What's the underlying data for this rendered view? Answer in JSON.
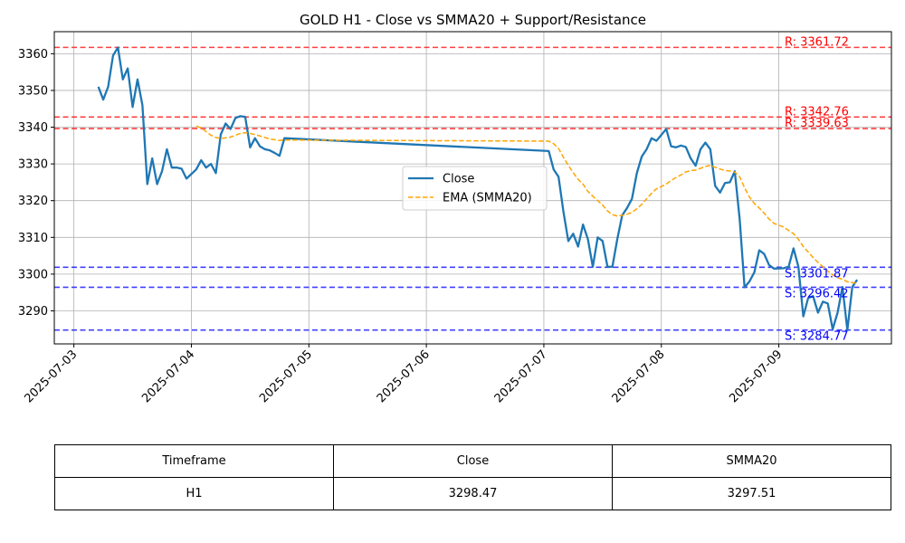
{
  "chart_data": {
    "type": "line",
    "title": "GOLD H1 - Close vs SMMA20 + Support/Resistance",
    "xlabel": "",
    "ylabel": "",
    "x_ticks": [
      "2025-07-03",
      "2025-07-04",
      "2025-07-05",
      "2025-07-06",
      "2025-07-07",
      "2025-07-08",
      "2025-07-09"
    ],
    "y_ticks": [
      3290,
      3300,
      3310,
      3320,
      3330,
      3340,
      3350,
      3360
    ],
    "xlim": [
      "2025-07-02 20:00",
      "2025-07-09 23:00"
    ],
    "ylim": [
      3281,
      3366
    ],
    "grid": true,
    "legend_position": "center-right",
    "series": [
      {
        "name": "Close",
        "color": "#1f77b4",
        "style": "solid",
        "points": [
          [
            "2025-07-03 05:00",
            3351
          ],
          [
            "2025-07-03 06:00",
            3347.5
          ],
          [
            "2025-07-03 07:00",
            3351
          ],
          [
            "2025-07-03 08:00",
            3359.5
          ],
          [
            "2025-07-03 09:00",
            3361.7
          ],
          [
            "2025-07-03 10:00",
            3353
          ],
          [
            "2025-07-03 11:00",
            3356
          ],
          [
            "2025-07-03 12:00",
            3345.5
          ],
          [
            "2025-07-03 13:00",
            3353
          ],
          [
            "2025-07-03 14:00",
            3346
          ],
          [
            "2025-07-03 15:00",
            3324.5
          ],
          [
            "2025-07-03 16:00",
            3331.5
          ],
          [
            "2025-07-03 17:00",
            3324.5
          ],
          [
            "2025-07-03 18:00",
            3328
          ],
          [
            "2025-07-03 19:00",
            3334
          ],
          [
            "2025-07-03 20:00",
            3329
          ],
          [
            "2025-07-03 21:00",
            3329
          ],
          [
            "2025-07-03 22:00",
            3328.7
          ],
          [
            "2025-07-03 23:00",
            3326
          ],
          [
            "2025-07-04 01:00",
            3328.5
          ],
          [
            "2025-07-04 02:00",
            3331
          ],
          [
            "2025-07-04 03:00",
            3329
          ],
          [
            "2025-07-04 04:00",
            3330
          ],
          [
            "2025-07-04 05:00",
            3327.5
          ],
          [
            "2025-07-04 06:00",
            3338
          ],
          [
            "2025-07-04 07:00",
            3341
          ],
          [
            "2025-07-04 08:00",
            3339.5
          ],
          [
            "2025-07-04 09:00",
            3342.5
          ],
          [
            "2025-07-04 10:00",
            3343
          ],
          [
            "2025-07-04 11:00",
            3342.8
          ],
          [
            "2025-07-04 12:00",
            3334.5
          ],
          [
            "2025-07-04 13:00",
            3337
          ],
          [
            "2025-07-04 14:00",
            3334.8
          ],
          [
            "2025-07-04 15:00",
            3334
          ],
          [
            "2025-07-04 16:00",
            3333.7
          ],
          [
            "2025-07-04 17:00",
            3333
          ],
          [
            "2025-07-04 18:00",
            3332.2
          ],
          [
            "2025-07-04 19:00",
            3337
          ],
          [
            "2025-07-07 01:00",
            3333.5
          ],
          [
            "2025-07-07 02:00",
            3328.5
          ],
          [
            "2025-07-07 03:00",
            3326.5
          ],
          [
            "2025-07-07 04:00",
            3317
          ],
          [
            "2025-07-07 05:00",
            3309
          ],
          [
            "2025-07-07 06:00",
            3311
          ],
          [
            "2025-07-07 07:00",
            3307.5
          ],
          [
            "2025-07-07 08:00",
            3313.5
          ],
          [
            "2025-07-07 09:00",
            3309.5
          ],
          [
            "2025-07-07 10:00",
            3302
          ],
          [
            "2025-07-07 11:00",
            3310
          ],
          [
            "2025-07-07 12:00",
            3309
          ],
          [
            "2025-07-07 13:00",
            3302
          ],
          [
            "2025-07-07 14:00",
            3302
          ],
          [
            "2025-07-07 15:00",
            3309.5
          ],
          [
            "2025-07-07 16:00",
            3316
          ],
          [
            "2025-07-07 17:00",
            3318
          ],
          [
            "2025-07-07 18:00",
            3320.5
          ],
          [
            "2025-07-07 19:00",
            3327.5
          ],
          [
            "2025-07-07 20:00",
            3332
          ],
          [
            "2025-07-07 21:00",
            3334
          ],
          [
            "2025-07-07 22:00",
            3337
          ],
          [
            "2025-07-07 23:00",
            3336.3
          ],
          [
            "2025-07-08 01:00",
            3339.5
          ],
          [
            "2025-07-08 02:00",
            3334.8
          ],
          [
            "2025-07-08 03:00",
            3334.5
          ],
          [
            "2025-07-08 04:00",
            3335
          ],
          [
            "2025-07-08 05:00",
            3334.6
          ],
          [
            "2025-07-08 06:00",
            3331.5
          ],
          [
            "2025-07-08 07:00",
            3329.5
          ],
          [
            "2025-07-08 08:00",
            3334
          ],
          [
            "2025-07-08 09:00",
            3335.8
          ],
          [
            "2025-07-08 10:00",
            3334
          ],
          [
            "2025-07-08 11:00",
            3324
          ],
          [
            "2025-07-08 12:00",
            3322.2
          ],
          [
            "2025-07-08 13:00",
            3324.8
          ],
          [
            "2025-07-08 14:00",
            3325
          ],
          [
            "2025-07-08 15:00",
            3328
          ],
          [
            "2025-07-08 16:00",
            3315
          ],
          [
            "2025-07-08 17:00",
            3296.4
          ],
          [
            "2025-07-08 18:00",
            3298
          ],
          [
            "2025-07-08 19:00",
            3300.5
          ],
          [
            "2025-07-08 20:00",
            3306.5
          ],
          [
            "2025-07-08 21:00",
            3305.5
          ],
          [
            "2025-07-08 22:00",
            3302.5
          ],
          [
            "2025-07-08 23:00",
            3301.5
          ],
          [
            "2025-07-09 01:00",
            3301.6
          ],
          [
            "2025-07-09 02:00",
            3302
          ],
          [
            "2025-07-09 03:00",
            3307
          ],
          [
            "2025-07-09 04:00",
            3302
          ],
          [
            "2025-07-09 05:00",
            3288.5
          ],
          [
            "2025-07-09 06:00",
            3293.5
          ],
          [
            "2025-07-09 07:00",
            3294
          ],
          [
            "2025-07-09 08:00",
            3289.5
          ],
          [
            "2025-07-09 09:00",
            3292.5
          ],
          [
            "2025-07-09 10:00",
            3292
          ],
          [
            "2025-07-09 11:00",
            3285
          ],
          [
            "2025-07-09 12:00",
            3289.5
          ],
          [
            "2025-07-09 13:00",
            3296.5
          ],
          [
            "2025-07-09 14:00",
            3284.8
          ],
          [
            "2025-07-09 15:00",
            3296.5
          ],
          [
            "2025-07-09 16:00",
            3298.47
          ]
        ]
      },
      {
        "name": "EMA (SMMA20)",
        "color": "#ffa500",
        "style": "dashed",
        "points": [
          [
            "2025-07-04 01:00",
            3340.3
          ],
          [
            "2025-07-04 02:00",
            3339.8
          ],
          [
            "2025-07-04 03:00",
            3338.8
          ],
          [
            "2025-07-04 04:00",
            3337.8
          ],
          [
            "2025-07-04 05:00",
            3337.2
          ],
          [
            "2025-07-04 06:00",
            3336.9
          ],
          [
            "2025-07-04 07:00",
            3337.1
          ],
          [
            "2025-07-04 08:00",
            3337.3
          ],
          [
            "2025-07-04 09:00",
            3337.8
          ],
          [
            "2025-07-04 10:00",
            3338.3
          ],
          [
            "2025-07-04 11:00",
            3338.5
          ],
          [
            "2025-07-04 12:00",
            3338.3
          ],
          [
            "2025-07-04 13:00",
            3338
          ],
          [
            "2025-07-04 14:00",
            3337.6
          ],
          [
            "2025-07-04 15:00",
            3337.2
          ],
          [
            "2025-07-04 16:00",
            3336.8
          ],
          [
            "2025-07-04 17:00",
            3336.6
          ],
          [
            "2025-07-04 18:00",
            3336.4
          ],
          [
            "2025-07-04 19:00",
            3336.5
          ],
          [
            "2025-07-07 01:00",
            3336.2
          ],
          [
            "2025-07-07 02:00",
            3335.5
          ],
          [
            "2025-07-07 03:00",
            3334.2
          ],
          [
            "2025-07-07 04:00",
            3331.8
          ],
          [
            "2025-07-07 05:00",
            3329.6
          ],
          [
            "2025-07-07 06:00",
            3327.6
          ],
          [
            "2025-07-07 07:00",
            3325.8
          ],
          [
            "2025-07-07 08:00",
            3324.5
          ],
          [
            "2025-07-07 09:00",
            3322.5
          ],
          [
            "2025-07-07 10:00",
            3321.2
          ],
          [
            "2025-07-07 11:00",
            3320
          ],
          [
            "2025-07-07 12:00",
            3318.8
          ],
          [
            "2025-07-07 13:00",
            3317.2
          ],
          [
            "2025-07-07 14:00",
            3316.2
          ],
          [
            "2025-07-07 15:00",
            3315.8
          ],
          [
            "2025-07-07 16:00",
            3316
          ],
          [
            "2025-07-07 17:00",
            3316.3
          ],
          [
            "2025-07-07 18:00",
            3316.8
          ],
          [
            "2025-07-07 19:00",
            3317.8
          ],
          [
            "2025-07-07 20:00",
            3319
          ],
          [
            "2025-07-07 21:00",
            3320.5
          ],
          [
            "2025-07-07 22:00",
            3322
          ],
          [
            "2025-07-07 23:00",
            3323.2
          ],
          [
            "2025-07-08 01:00",
            3324.5
          ],
          [
            "2025-07-08 02:00",
            3325.5
          ],
          [
            "2025-07-08 03:00",
            3326.3
          ],
          [
            "2025-07-08 04:00",
            3327
          ],
          [
            "2025-07-08 05:00",
            3327.8
          ],
          [
            "2025-07-08 06:00",
            3328.2
          ],
          [
            "2025-07-08 07:00",
            3328.3
          ],
          [
            "2025-07-08 08:00",
            3328.8
          ],
          [
            "2025-07-08 09:00",
            3329.3
          ],
          [
            "2025-07-08 10:00",
            3329.6
          ],
          [
            "2025-07-08 11:00",
            3329.1
          ],
          [
            "2025-07-08 12:00",
            3328.6
          ],
          [
            "2025-07-08 13:00",
            3328.2
          ],
          [
            "2025-07-08 14:00",
            3328.1
          ],
          [
            "2025-07-08 15:00",
            3327.8
          ],
          [
            "2025-07-08 16:00",
            3326.5
          ],
          [
            "2025-07-08 17:00",
            3323.5
          ],
          [
            "2025-07-08 18:00",
            3321
          ],
          [
            "2025-07-08 19:00",
            3319.2
          ],
          [
            "2025-07-08 20:00",
            3318
          ],
          [
            "2025-07-08 21:00",
            3316.6
          ],
          [
            "2025-07-08 22:00",
            3315
          ],
          [
            "2025-07-08 23:00",
            3313.8
          ],
          [
            "2025-07-09 01:00",
            3312.8
          ],
          [
            "2025-07-09 02:00",
            3311.9
          ],
          [
            "2025-07-09 03:00",
            3311
          ],
          [
            "2025-07-09 04:00",
            3309.5
          ],
          [
            "2025-07-09 05:00",
            3307.5
          ],
          [
            "2025-07-09 06:00",
            3306
          ],
          [
            "2025-07-09 07:00",
            3304.5
          ],
          [
            "2025-07-09 08:00",
            3303.2
          ],
          [
            "2025-07-09 09:00",
            3302
          ],
          [
            "2025-07-09 10:00",
            3300.8
          ],
          [
            "2025-07-09 11:00",
            3299.8
          ],
          [
            "2025-07-09 12:00",
            3299
          ],
          [
            "2025-07-09 13:00",
            3298.6
          ],
          [
            "2025-07-09 14:00",
            3297.9
          ],
          [
            "2025-07-09 15:00",
            3297.7
          ],
          [
            "2025-07-09 16:00",
            3297.51
          ]
        ]
      }
    ],
    "levels": [
      {
        "type": "resistance",
        "value": 3361.72,
        "label": "R: 3361.72",
        "color": "#ff0000"
      },
      {
        "type": "resistance",
        "value": 3342.76,
        "label": "R: 3342.76",
        "color": "#ff0000"
      },
      {
        "type": "resistance",
        "value": 3339.63,
        "label": "R: 3339.63",
        "color": "#ff0000"
      },
      {
        "type": "support",
        "value": 3301.87,
        "label": "S: 3301.87",
        "color": "#0000ff"
      },
      {
        "type": "support",
        "value": 3296.42,
        "label": "S: 3296.42",
        "color": "#0000ff"
      },
      {
        "type": "support",
        "value": 3284.77,
        "label": "S: 3284.77",
        "color": "#0000ff"
      }
    ]
  },
  "table": {
    "headers": [
      "Timeframe",
      "Close",
      "SMMA20"
    ],
    "row": [
      "H1",
      "3298.47",
      "3297.51"
    ]
  }
}
